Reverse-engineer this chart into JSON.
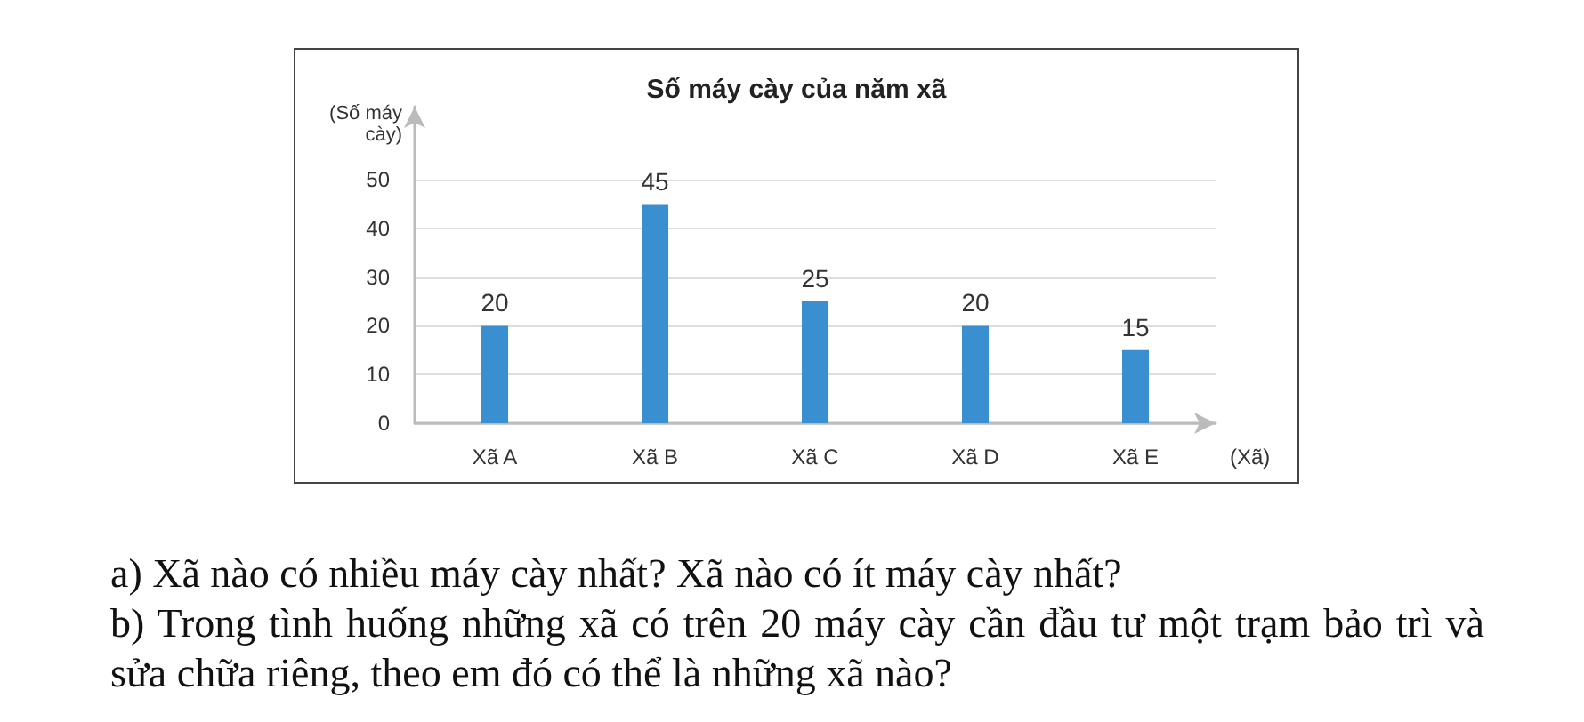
{
  "chart_data": {
    "type": "bar",
    "title": "Số máy cày của năm xã",
    "ylabel": "(Số máy cày)",
    "xlabel": "(Xã)",
    "categories": [
      "Xã A",
      "Xã B",
      "Xã C",
      "Xã D",
      "Xã E"
    ],
    "values": [
      20,
      45,
      25,
      20,
      15
    ],
    "color": "#3a8fd0",
    "ylim": [
      0,
      65
    ],
    "yticks": [
      0,
      10,
      20,
      30,
      40,
      50
    ],
    "grid": "y",
    "data_labels": true,
    "annotations": [
      "a) Xã nào có nhiều máy cày nhất? Xã nào có ít máy cày nhất?",
      "b) Trong tình huống những xã có trên 20 máy cày cần đầu tư một trạm bảo trì và sửa chữa riêng, theo em đó có thể là những xã nào?"
    ]
  }
}
